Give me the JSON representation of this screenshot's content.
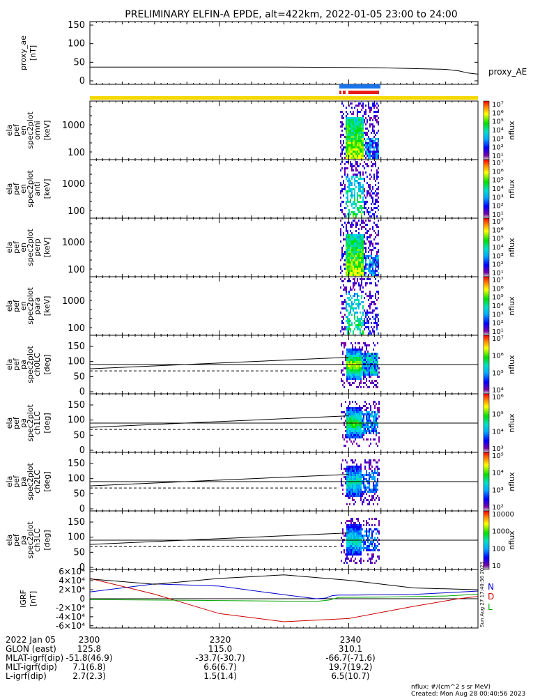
{
  "title": "PRELIMINARY ELFIN-A EPDE, alt=422km, 2022-01-05 23:00 to 24:00",
  "chart_data": [
    {
      "type": "line",
      "panel": "proxy_ae",
      "ylabel": [
        "proxy_ae",
        "[nT]"
      ],
      "yticks": [
        "0",
        "50",
        "100",
        "150"
      ],
      "ylim": [
        0,
        150
      ],
      "series": [
        {
          "name": "proxy_AE",
          "color": "#000000",
          "x": [
            0,
            10,
            20,
            30,
            40,
            45,
            50,
            55,
            57,
            58.5,
            60
          ],
          "values": [
            37,
            37,
            37,
            37,
            36,
            35,
            33,
            31,
            27,
            21,
            18
          ]
        }
      ]
    },
    {
      "type": "heatmap",
      "panel": "spec2plot_omni",
      "ylabel": [
        "ela",
        "pef",
        "en",
        "spec2plot",
        "omni",
        "[keV]"
      ],
      "yticks": [
        "100",
        "1000"
      ],
      "colorbar": {
        "label": "nflux",
        "ticks": [
          "10¹",
          "10²",
          "10³",
          "10⁴",
          "10⁵",
          "10⁶",
          "10⁷"
        ]
      }
    },
    {
      "type": "heatmap",
      "panel": "spec2plot_anti",
      "ylabel": [
        "ela",
        "pef",
        "en",
        "spec2plot",
        "anti",
        "[keV]"
      ],
      "yticks": [
        "100",
        "1000"
      ],
      "colorbar": {
        "label": "nflux",
        "ticks": [
          "10¹",
          "10²",
          "10³",
          "10⁴",
          "10⁵",
          "10⁶",
          "10⁷"
        ]
      }
    },
    {
      "type": "heatmap",
      "panel": "spec2plot_perp",
      "ylabel": [
        "ela",
        "pef",
        "en",
        "spec2plot",
        "perp",
        "[keV]"
      ],
      "yticks": [
        "100",
        "1000"
      ],
      "colorbar": {
        "label": "nflux",
        "ticks": [
          "10¹",
          "10²",
          "10³",
          "10⁴",
          "10⁵",
          "10⁶",
          "10⁷"
        ]
      }
    },
    {
      "type": "heatmap",
      "panel": "spec2plot_para",
      "ylabel": [
        "ela",
        "pef",
        "en",
        "spec2plot",
        "para",
        "[keV]"
      ],
      "yticks": [
        "100",
        "1000"
      ],
      "colorbar": {
        "label": "nflux",
        "ticks": [
          "10¹",
          "10²",
          "10³",
          "10⁴",
          "10⁵",
          "10⁶",
          "10⁷"
        ]
      }
    },
    {
      "type": "heatmap",
      "panel": "ch0LC",
      "ylabel": [
        "ela",
        "pef",
        "pa",
        "spec2plot",
        "ch0LC",
        "[deg]"
      ],
      "yticks": [
        "0",
        "50",
        "100",
        "150"
      ],
      "ylim": [
        0,
        180
      ],
      "colorbar": {
        "label": "nflux",
        "ticks": [
          "10⁴",
          "10⁵",
          "10⁶",
          "10⁷"
        ]
      },
      "lines": {
        "solid_start": 76,
        "solid_end": 114,
        "horizontal": 90,
        "dashed": 69
      }
    },
    {
      "type": "heatmap",
      "panel": "ch1LC",
      "ylabel": [
        "ela",
        "pef",
        "pa",
        "spec2plot",
        "ch1LC",
        "[deg]"
      ],
      "yticks": [
        "0",
        "50",
        "100",
        "150"
      ],
      "ylim": [
        0,
        180
      ],
      "colorbar": {
        "label": "nflux",
        "ticks": [
          "10³",
          "10⁴",
          "10⁵",
          "10⁶"
        ]
      },
      "lines": {
        "solid_start": 76,
        "solid_end": 114,
        "horizontal": 90,
        "dashed": 69
      }
    },
    {
      "type": "heatmap",
      "panel": "ch2LC",
      "ylabel": [
        "ela",
        "pef",
        "pa",
        "spec2plot",
        "ch2LC",
        "[deg]"
      ],
      "yticks": [
        "0",
        "50",
        "100",
        "150"
      ],
      "ylim": [
        0,
        180
      ],
      "colorbar": {
        "label": "nflux",
        "ticks": [
          "10²",
          "10³",
          "10⁴",
          "10⁵"
        ]
      },
      "lines": {
        "solid_start": 76,
        "solid_end": 114,
        "horizontal": 90,
        "dashed": 69
      }
    },
    {
      "type": "heatmap",
      "panel": "ch3LC",
      "ylabel": [
        "ela",
        "pef",
        "pa",
        "spec2plot",
        "ch3LC",
        "[deg]"
      ],
      "yticks": [
        "0",
        "50",
        "100",
        "150"
      ],
      "ylim": [
        0,
        180
      ],
      "colorbar": {
        "label": "nflux",
        "ticks": [
          "10",
          "100",
          "1000",
          "10000"
        ]
      },
      "lines": {
        "solid_start": 76,
        "solid_end": 114,
        "horizontal": 90,
        "dashed": 69
      }
    },
    {
      "type": "line",
      "panel": "IGRF",
      "ylabel": [
        "IGRF",
        "[nT]"
      ],
      "yticks": [
        "-6×10⁴",
        "-4×10⁴",
        "-2×10⁴",
        "0",
        "2×10⁴",
        "4×10⁴",
        "6×10⁴"
      ],
      "ylim": [
        -65000,
        65000
      ],
      "series": [
        {
          "name": "N",
          "color": "#0000cc",
          "x": [
            0,
            10,
            20,
            30,
            35,
            36.5,
            37.5,
            38.5,
            40,
            50,
            60
          ],
          "values": [
            15000,
            33000,
            28000,
            9000,
            0,
            1500,
            7000,
            8000,
            8000,
            9500,
            17000
          ]
        },
        {
          "name": "D",
          "color": "#cc0000",
          "x": [
            0,
            10,
            20,
            30,
            40,
            50,
            57,
            60
          ],
          "values": [
            45000,
            10000,
            -33000,
            -51000,
            -44000,
            -17000,
            0,
            5000
          ]
        },
        {
          "name": "L",
          "color": "#00aa00",
          "x": [
            0,
            20,
            35,
            37,
            38.5,
            45,
            55,
            60
          ],
          "values": [
            -2000,
            -4000,
            -6000,
            -3000,
            3000,
            3500,
            6000,
            10000
          ]
        },
        {
          "name": "",
          "color": "#000000",
          "x": [
            0,
            10,
            20,
            30,
            40,
            50,
            60
          ],
          "values": [
            44000,
            32000,
            45000,
            53000,
            41000,
            24000,
            20000
          ]
        }
      ]
    }
  ],
  "orbit_bars": {
    "top": {
      "color": "#1a73e8"
    },
    "lower": {
      "color": "#e81a1a"
    },
    "full": {
      "color": "#f5d800"
    }
  },
  "ephemeris": {
    "rows": [
      {
        "label": "2022 Jan 05",
        "values": [
          "2300",
          "2320",
          "2340"
        ]
      },
      {
        "label": "GLON (east)",
        "values": [
          "125.8",
          "115.0",
          "310.1"
        ]
      },
      {
        "label": "MLAT-igrf(dip)",
        "values": [
          "-51.8(46.9)",
          "-33.7(-30.7)",
          "-66.7(-71.6)"
        ]
      },
      {
        "label": "MLT-igrf(dip)",
        "values": [
          "7.1(6.8)",
          "6.6(6.7)",
          "19.7(19.2)"
        ]
      },
      {
        "label": "L-igrf(dip)",
        "values": [
          "2.7(2.3)",
          "1.5(1.4)",
          "6.5(10.7)"
        ]
      }
    ]
  },
  "footer": {
    "units": "nflux: #/(cm^2 s sr MeV)",
    "created": "Created: Mon Aug 28 00:40:56 2023",
    "side_stamp": "Sun Aug 27 17:40:56 2023"
  }
}
